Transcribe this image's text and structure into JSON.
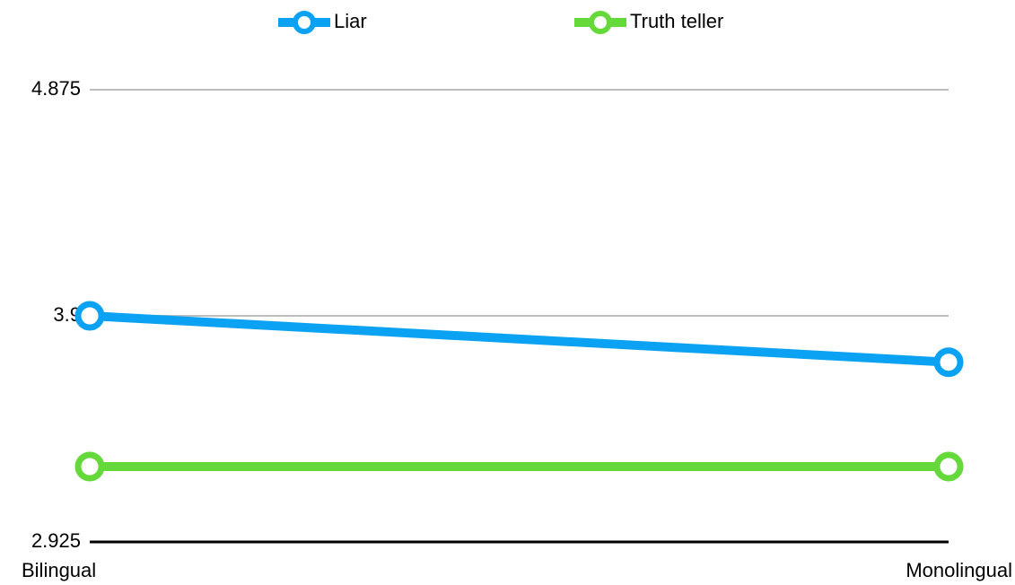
{
  "chart_data": {
    "type": "line",
    "categories": [
      "Bilingual",
      "Monolingual"
    ],
    "series": [
      {
        "name": "Liar",
        "color": "#0ba2f4",
        "values": [
          3.9,
          3.7
        ]
      },
      {
        "name": "Truth teller",
        "color": "#66d93a",
        "values": [
          3.25,
          3.25
        ]
      }
    ],
    "ylim": [
      2.925,
      4.875
    ],
    "yticks": [
      2.925,
      3.9,
      4.875
    ],
    "grid": true,
    "legend": "top"
  }
}
